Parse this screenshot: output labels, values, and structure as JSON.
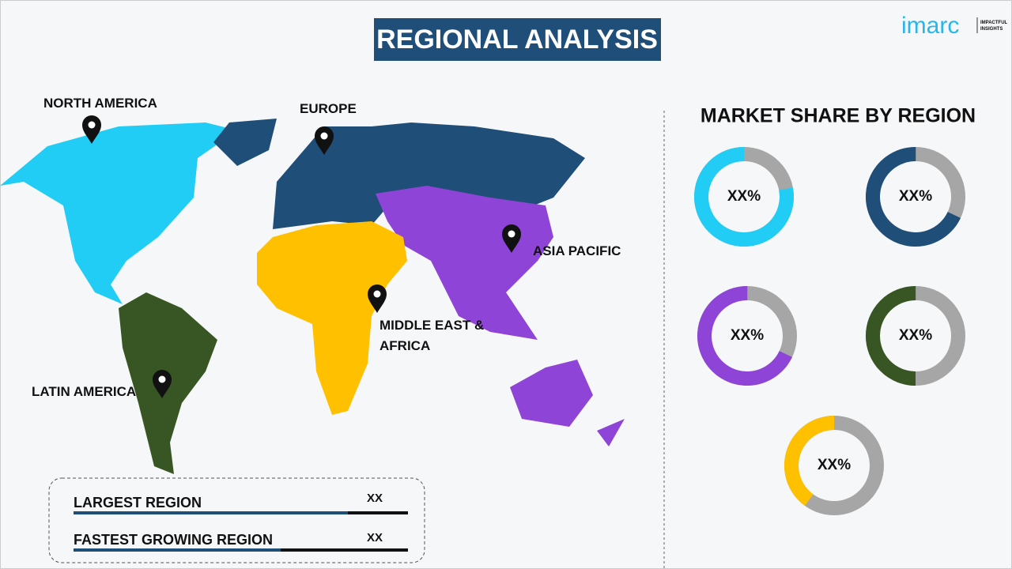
{
  "header": {
    "title": "REGIONAL ANALYSIS",
    "logo": "imarc",
    "logo_tagline": [
      "IMPACTFUL",
      "INSIGHTS"
    ]
  },
  "map": {
    "regions": [
      {
        "label": "NORTH AMERICA"
      },
      {
        "label": "EUROPE"
      },
      {
        "label": "ASIA PACIFIC"
      },
      {
        "label": [
          "MIDDLE EAST &",
          "AFRICA"
        ]
      },
      {
        "label": "LATIN AMERICA"
      }
    ]
  },
  "market_share": {
    "title": "MARKET SHARE BY REGION",
    "donuts": [
      {
        "label": "XX%"
      },
      {
        "label": "XX%"
      },
      {
        "label": "XX%"
      },
      {
        "label": "XX%"
      },
      {
        "label": "XX%"
      }
    ]
  },
  "summary": {
    "rows": [
      {
        "label": "LARGEST REGION",
        "value": "XX"
      },
      {
        "label": "FASTEST GROWING REGION",
        "value": "XX"
      }
    ]
  }
}
